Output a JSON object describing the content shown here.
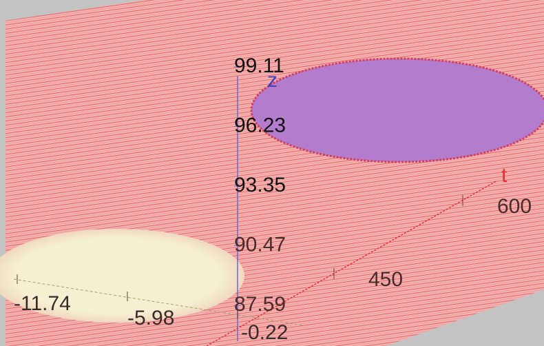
{
  "chart_data": {
    "type": "surface3d",
    "zlabel": "z",
    "tlabel": "t",
    "zticks": [
      87.59,
      90.47,
      93.35,
      96.23,
      99.11
    ],
    "tticks": [
      450,
      600
    ],
    "xticks": [
      -11.74,
      -5.98,
      -0.22
    ],
    "surface_color": "#f3a8a8",
    "line_color": "#e04848",
    "high_color": "#b47ccc",
    "low_color": "#f6f0d2",
    "zaxis_color": "#6a6ac8",
    "taxis_color": "#e03030"
  }
}
